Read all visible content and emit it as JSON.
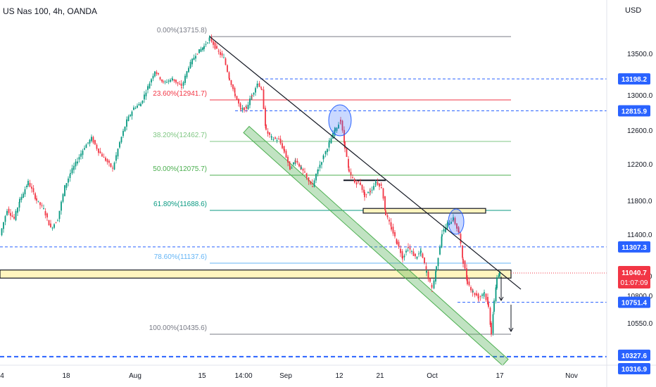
{
  "header": {
    "symbol_title": "US Nas 100, 4h, OANDA",
    "currency": "USD"
  },
  "chart_data": {
    "type": "candlestick",
    "title": "US Nas 100, 4h, OANDA",
    "y_axis": {
      "unit": "USD",
      "ylim": [
        10180,
        13960
      ],
      "tick_labels": [
        "13500.0",
        "13000.0",
        "12600.0",
        "12200.0",
        "11800.0",
        "11400.0",
        "11000.0",
        "10800.0",
        "10550.0"
      ]
    },
    "x_axis": {
      "tick_labels": [
        "4",
        "18",
        "Aug",
        "15",
        "14:00",
        "Sep",
        "12",
        "21",
        "Oct",
        "17",
        "Nov"
      ]
    },
    "price_path_approx": [
      {
        "x": 0,
        "y": 11430
      },
      {
        "x": 10,
        "y": 11700
      },
      {
        "x": 20,
        "y": 11600
      },
      {
        "x": 28,
        "y": 11800
      },
      {
        "x": 40,
        "y": 12000
      },
      {
        "x": 52,
        "y": 11800
      },
      {
        "x": 62,
        "y": 11700
      },
      {
        "x": 72,
        "y": 11500
      },
      {
        "x": 82,
        "y": 11600
      },
      {
        "x": 92,
        "y": 11950
      },
      {
        "x": 100,
        "y": 12100
      },
      {
        "x": 110,
        "y": 12250
      },
      {
        "x": 120,
        "y": 12400
      },
      {
        "x": 130,
        "y": 12500
      },
      {
        "x": 140,
        "y": 12350
      },
      {
        "x": 150,
        "y": 12250
      },
      {
        "x": 160,
        "y": 12150
      },
      {
        "x": 170,
        "y": 12450
      },
      {
        "x": 180,
        "y": 12700
      },
      {
        "x": 190,
        "y": 12850
      },
      {
        "x": 200,
        "y": 12900
      },
      {
        "x": 210,
        "y": 13100
      },
      {
        "x": 220,
        "y": 13300
      },
      {
        "x": 232,
        "y": 13150
      },
      {
        "x": 245,
        "y": 13200
      },
      {
        "x": 258,
        "y": 13100
      },
      {
        "x": 268,
        "y": 13350
      },
      {
        "x": 278,
        "y": 13500
      },
      {
        "x": 290,
        "y": 13600
      },
      {
        "x": 298,
        "y": 13700
      },
      {
        "x": 308,
        "y": 13550
      },
      {
        "x": 318,
        "y": 13450
      },
      {
        "x": 326,
        "y": 13200
      },
      {
        "x": 334,
        "y": 13000
      },
      {
        "x": 342,
        "y": 12830
      },
      {
        "x": 350,
        "y": 12850
      },
      {
        "x": 358,
        "y": 13000
      },
      {
        "x": 366,
        "y": 13150
      },
      {
        "x": 372,
        "y": 13050
      },
      {
        "x": 378,
        "y": 12580
      },
      {
        "x": 386,
        "y": 12500
      },
      {
        "x": 396,
        "y": 12480
      },
      {
        "x": 404,
        "y": 12350
      },
      {
        "x": 412,
        "y": 12150
      },
      {
        "x": 420,
        "y": 12250
      },
      {
        "x": 428,
        "y": 12150
      },
      {
        "x": 436,
        "y": 12050
      },
      {
        "x": 444,
        "y": 11950
      },
      {
        "x": 452,
        "y": 12150
      },
      {
        "x": 460,
        "y": 12300
      },
      {
        "x": 468,
        "y": 12450
      },
      {
        "x": 476,
        "y": 12600
      },
      {
        "x": 484,
        "y": 12700
      },
      {
        "x": 490,
        "y": 12400
      },
      {
        "x": 496,
        "y": 12100
      },
      {
        "x": 504,
        "y": 12000
      },
      {
        "x": 512,
        "y": 11980
      },
      {
        "x": 518,
        "y": 11850
      },
      {
        "x": 526,
        "y": 11900
      },
      {
        "x": 534,
        "y": 12000
      },
      {
        "x": 542,
        "y": 11950
      },
      {
        "x": 548,
        "y": 11650
      },
      {
        "x": 556,
        "y": 11500
      },
      {
        "x": 564,
        "y": 11350
      },
      {
        "x": 572,
        "y": 11200
      },
      {
        "x": 580,
        "y": 11300
      },
      {
        "x": 590,
        "y": 11200
      },
      {
        "x": 598,
        "y": 11250
      },
      {
        "x": 606,
        "y": 11050
      },
      {
        "x": 614,
        "y": 10870
      },
      {
        "x": 620,
        "y": 11100
      },
      {
        "x": 628,
        "y": 11450
      },
      {
        "x": 636,
        "y": 11550
      },
      {
        "x": 644,
        "y": 11600
      },
      {
        "x": 652,
        "y": 11450
      },
      {
        "x": 658,
        "y": 11150
      },
      {
        "x": 664,
        "y": 10950
      },
      {
        "x": 672,
        "y": 10850
      },
      {
        "x": 680,
        "y": 10800
      },
      {
        "x": 688,
        "y": 10850
      },
      {
        "x": 694,
        "y": 10700
      },
      {
        "x": 698,
        "y": 10450
      },
      {
        "x": 702,
        "y": 10750
      },
      {
        "x": 706,
        "y": 11000
      },
      {
        "x": 710,
        "y": 11040
      }
    ],
    "fibonacci": [
      {
        "label": "0.00%(13715.8)",
        "value": 13715.8,
        "color": "#787b86"
      },
      {
        "label": "23.60%(12941.7)",
        "value": 12941.7,
        "color": "#f23645"
      },
      {
        "label": "38.20%(12462.7)",
        "value": 12462.7,
        "color": "#81c784"
      },
      {
        "label": "50.00%(12075.7)",
        "value": 12075.7,
        "color": "#4caf50"
      },
      {
        "label": "61.80%(11688.6)",
        "value": 11688.6,
        "color": "#089981"
      },
      {
        "label": "78.60%(11137.6)",
        "value": 11137.6,
        "color": "#64b5f6"
      },
      {
        "label": "100.00%(10435.6)",
        "value": 10435.6,
        "color": "#787b86"
      }
    ],
    "horizontal_levels": [
      {
        "label": "13198.2",
        "value": 13198.2
      },
      {
        "label": "12815.9",
        "value": 12815.9
      },
      {
        "label": "11307.3",
        "value": 11307.3
      },
      {
        "label": "10751.4",
        "value": 10751.4
      },
      {
        "label": "10327.6",
        "value": 10327.6
      },
      {
        "label": "10316.9",
        "value": 10316.9
      }
    ],
    "current_price": {
      "label": "11040.7",
      "value": 11040.7,
      "countdown": "01:07:09"
    },
    "annotations": {
      "support_zone": [
        10990,
        11070
      ],
      "resistance_boxes": [
        [
          11660,
          11710
        ]
      ],
      "trendline": [
        {
          "x": 298,
          "y": 13715
        },
        {
          "x": 740,
          "y": 10880
        }
      ],
      "channel_lower": [
        {
          "x": 350,
          "y": 12600
        },
        {
          "x": 718,
          "y": 10300
        }
      ]
    }
  }
}
